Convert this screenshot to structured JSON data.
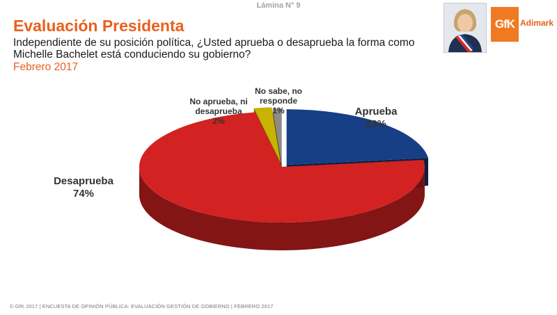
{
  "header": {
    "slide_number": "Lámina N° 9",
    "title": "Evaluación Presidenta",
    "question": "Independiente de su posición política, ¿Usted aprueba o desaprueba la forma como Michelle Bachelet está conduciendo su gobierno?",
    "period": "Febrero 2017"
  },
  "logo": {
    "mark": "GfK",
    "word": "Adimark",
    "color": "#f07a22",
    "icon": "gfk-adimark-logo"
  },
  "photo": {
    "icon": "president-portrait"
  },
  "footer": {
    "text": "© GfK 2017 | ENCUESTA DE OPINIÓN PÚBLICA: EVALUACIÓN GESTIÓN DE GOBIERNO | FEBRERO 2017"
  },
  "chart_data": {
    "type": "pie",
    "style": "3d-exploded",
    "title": "",
    "categories": [
      "Aprueba",
      "Desaprueba",
      "No aprueba, ni desaprueba",
      "No sabe, no responde"
    ],
    "values": [
      23,
      74,
      2,
      1
    ],
    "labels": [
      "23%",
      "74%",
      "2%",
      "1%"
    ],
    "colors": [
      "#173f86",
      "#d32222",
      "#c7b300",
      "#8e8a86"
    ],
    "start_angle": "12 o'clock, clockwise",
    "legend": "none"
  }
}
